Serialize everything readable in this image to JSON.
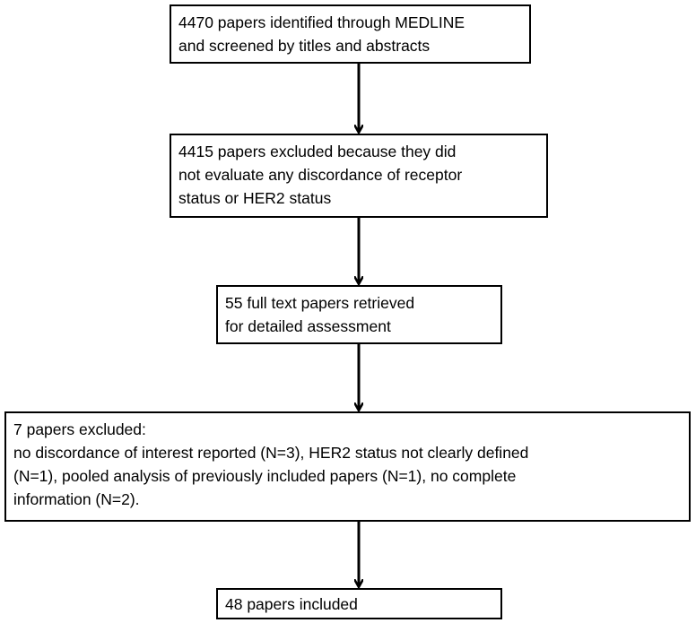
{
  "nodes": [
    {
      "lines": [
        "4470 papers identified through MEDLINE",
        "and screened by titles and abstracts"
      ]
    },
    {
      "lines": [
        "4415 papers excluded because they did",
        "not evaluate any discordance of receptor",
        "status or HER2 status"
      ]
    },
    {
      "lines": [
        "55 full text papers retrieved",
        "for detailed assessment"
      ]
    },
    {
      "lines": [
        "7 papers excluded:",
        "no discordance of interest reported (N=3), HER2 status not clearly defined",
        "(N=1), pooled analysis of previously included papers (N=1), no complete",
        "information (N=2)."
      ]
    },
    {
      "lines": [
        "48 papers included"
      ]
    }
  ]
}
